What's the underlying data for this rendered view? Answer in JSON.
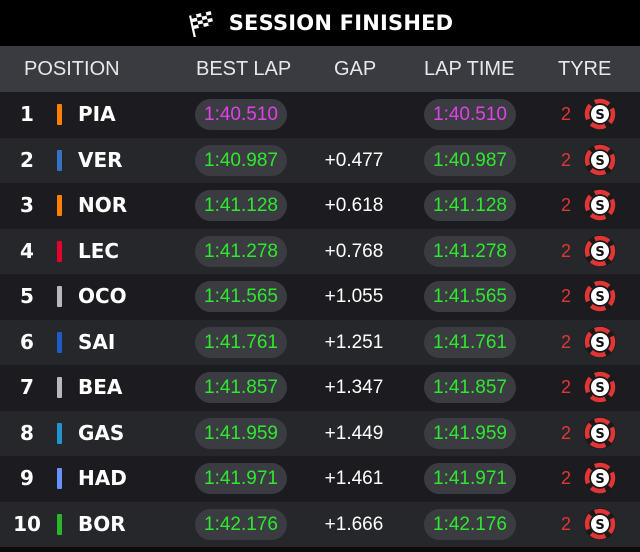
{
  "header": {
    "title": "SESSION FINISHED",
    "icon": "checkered-flag-icon"
  },
  "columns": {
    "position": "POSITION",
    "best_lap": "BEST LAP",
    "gap": "GAP",
    "lap_time": "LAP TIME",
    "tyre": "TYRE"
  },
  "colors": {
    "purple_time": "#e040e8",
    "green_time": "#2ee82e",
    "tyre_soft": "#e23636"
  },
  "rows": [
    {
      "pos": "1",
      "driver": "PIA",
      "team_color": "#ff8000",
      "best": "1:40.510",
      "gap": "",
      "lap": "1:40.510",
      "time_color": "purple",
      "laps": "2",
      "tyre": "S"
    },
    {
      "pos": "2",
      "driver": "VER",
      "team_color": "#3671c6",
      "best": "1:40.987",
      "gap": "+0.477",
      "lap": "1:40.987",
      "time_color": "green",
      "laps": "2",
      "tyre": "S"
    },
    {
      "pos": "3",
      "driver": "NOR",
      "team_color": "#ff8000",
      "best": "1:41.128",
      "gap": "+0.618",
      "lap": "1:41.128",
      "time_color": "green",
      "laps": "2",
      "tyre": "S"
    },
    {
      "pos": "4",
      "driver": "LEC",
      "team_color": "#e8002d",
      "best": "1:41.278",
      "gap": "+0.768",
      "lap": "1:41.278",
      "time_color": "green",
      "laps": "2",
      "tyre": "S"
    },
    {
      "pos": "5",
      "driver": "OCO",
      "team_color": "#b6babd",
      "best": "1:41.565",
      "gap": "+1.055",
      "lap": "1:41.565",
      "time_color": "green",
      "laps": "2",
      "tyre": "S"
    },
    {
      "pos": "6",
      "driver": "SAI",
      "team_color": "#1e5bc6",
      "best": "1:41.761",
      "gap": "+1.251",
      "lap": "1:41.761",
      "time_color": "green",
      "laps": "2",
      "tyre": "S"
    },
    {
      "pos": "7",
      "driver": "BEA",
      "team_color": "#b6babd",
      "best": "1:41.857",
      "gap": "+1.347",
      "lap": "1:41.857",
      "time_color": "green",
      "laps": "2",
      "tyre": "S"
    },
    {
      "pos": "8",
      "driver": "GAS",
      "team_color": "#2293d1",
      "best": "1:41.959",
      "gap": "+1.449",
      "lap": "1:41.959",
      "time_color": "green",
      "laps": "2",
      "tyre": "S"
    },
    {
      "pos": "9",
      "driver": "HAD",
      "team_color": "#6692ff",
      "best": "1:41.971",
      "gap": "+1.461",
      "lap": "1:41.971",
      "time_color": "green",
      "laps": "2",
      "tyre": "S"
    },
    {
      "pos": "10",
      "driver": "BOR",
      "team_color": "#2ab52a",
      "best": "1:42.176",
      "gap": "+1.666",
      "lap": "1:42.176",
      "time_color": "green",
      "laps": "2",
      "tyre": "S"
    }
  ]
}
